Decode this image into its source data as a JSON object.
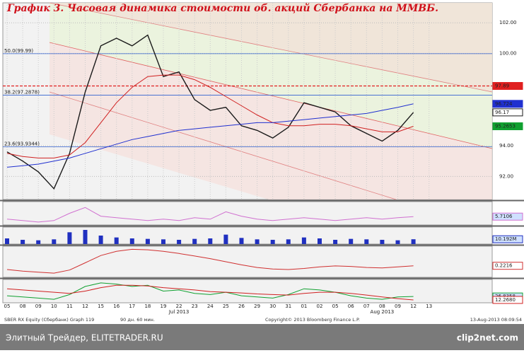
{
  "title": "График 3.   Часовая динамика стоимости об. акций Сбербанка на ММВБ.",
  "chart_data": {
    "type": "line",
    "categories": [
      "05",
      "08",
      "09",
      "10",
      "11",
      "12",
      "15",
      "16",
      "17",
      "18",
      "19",
      "22",
      "23",
      "24",
      "25",
      "26",
      "29",
      "30",
      "31",
      "01",
      "02",
      "05",
      "06",
      "07",
      "08",
      "09",
      "12",
      "13"
    ],
    "period_labels": [
      "Jul 2013",
      "Aug 2013"
    ],
    "ylim": [
      90.5,
      103.3
    ],
    "yticks": [
      {
        "value": 92,
        "label": "92.00"
      },
      {
        "value": 94,
        "label": "94.00"
      },
      {
        "value": 100,
        "label": "100.00"
      },
      {
        "value": 102,
        "label": "102.00"
      }
    ],
    "series": [
      {
        "color": "#1a1a1a",
        "values": [
          93.6,
          93.0,
          92.3,
          91.2,
          93.5,
          97.5,
          100.5,
          101.0,
          100.5,
          101.2,
          98.5,
          98.8,
          97.0,
          96.3,
          96.5,
          95.3,
          95.0,
          94.5,
          95.2,
          96.8,
          96.5,
          96.2,
          95.3,
          94.8,
          94.3,
          95.0,
          96.17,
          null
        ]
      },
      {
        "color": "#d02020",
        "values": [
          93.5,
          93.3,
          93.2,
          93.2,
          93.4,
          94.2,
          95.5,
          96.8,
          97.8,
          98.5,
          98.6,
          98.6,
          98.3,
          97.8,
          97.2,
          96.6,
          96.0,
          95.5,
          95.3,
          95.3,
          95.4,
          95.4,
          95.3,
          95.1,
          94.9,
          94.9,
          95.2653,
          null
        ]
      },
      {
        "color": "#2030d0",
        "values": [
          92.6,
          92.7,
          92.8,
          93.0,
          93.2,
          93.5,
          93.8,
          94.1,
          94.4,
          94.6,
          94.8,
          95.0,
          95.1,
          95.2,
          95.3,
          95.4,
          95.5,
          95.5,
          95.6,
          95.7,
          95.8,
          95.9,
          96.0,
          96.1,
          96.3,
          96.5,
          96.724,
          null
        ]
      }
    ],
    "levels": [
      {
        "value": 97.89,
        "label": "97.89",
        "color": "#e02020"
      },
      {
        "value": 96.724,
        "label": "96.724",
        "color": "#2030d0"
      },
      {
        "value": 96.17,
        "label": "96.17",
        "color": "#1a1a1a"
      },
      {
        "value": 95.2653,
        "label": "95.2653",
        "color": "#10a030"
      }
    ],
    "fib_levels": [
      {
        "value": 99.99,
        "label": "50.0(99.99)"
      },
      {
        "value": 97.2878,
        "label": "38.2(97.2878)"
      },
      {
        "value": 93.9344,
        "label": "23.6(93.9344)"
      }
    ]
  },
  "panels": [
    {
      "ylim": [
        0,
        16
      ],
      "series": [
        {
          "color": "#d070d0",
          "values": [
            4,
            3,
            2,
            3,
            8,
            12,
            6,
            5,
            4,
            3,
            4,
            3,
            5,
            4,
            9,
            6,
            4,
            3,
            4,
            5,
            4,
            3,
            4,
            5,
            4,
            5,
            5.7106,
            null
          ],
          "label": "5.7106"
        }
      ]
    },
    {
      "ylim": [
        0,
        36
      ],
      "series": [
        {
          "color": "#2030c0",
          "values": [
            12,
            9,
            8,
            10,
            25,
            30,
            18,
            14,
            12,
            11,
            10,
            9,
            11,
            12,
            20,
            13,
            10,
            9,
            10,
            14,
            12,
            9,
            11,
            10,
            9,
            8,
            10.192,
            null
          ],
          "label": "10.192M"
        }
      ]
    },
    {
      "ylim": [
        -2,
        4
      ],
      "series": [
        {
          "color": "#d03030",
          "values": [
            -0.5,
            -0.8,
            -1.0,
            -1.2,
            -0.6,
            0.8,
            2.2,
            3.0,
            3.4,
            3.3,
            3.0,
            2.6,
            2.1,
            1.6,
            1.0,
            0.4,
            -0.1,
            -0.4,
            -0.5,
            -0.3,
            0.0,
            0.2,
            0.1,
            -0.1,
            -0.2,
            0.0,
            0.2216,
            null
          ],
          "label": "0.2216"
        }
      ]
    },
    {
      "ylim": [
        0,
        100
      ],
      "series": [
        {
          "color": "#10a030",
          "values": [
            30,
            25,
            20,
            15,
            35,
            70,
            85,
            80,
            70,
            75,
            50,
            55,
            40,
            35,
            45,
            30,
            25,
            20,
            35,
            60,
            55,
            45,
            30,
            20,
            15,
            25,
            26.8358,
            null
          ],
          "label": "26.8358"
        },
        {
          "color": "#d02020",
          "values": [
            60,
            55,
            50,
            45,
            40,
            50,
            65,
            75,
            75,
            72,
            65,
            60,
            55,
            48,
            45,
            42,
            38,
            35,
            33,
            40,
            45,
            45,
            40,
            33,
            25,
            18,
            12.268,
            null
          ],
          "label": "12.2680"
        }
      ]
    }
  ],
  "footer": {
    "left": "SBER RX Equity (Сбербанк) Graph 119",
    "period": "90 дн. 60 мин.",
    "copyright": "Copyright© 2013 Bloomberg Finance L.P.",
    "timestamp": "13-Aug-2013 08:09:54"
  },
  "banner": {
    "left": "Элитный Трейдер, ELITETRADER.RU",
    "right": "clip2net.com"
  }
}
